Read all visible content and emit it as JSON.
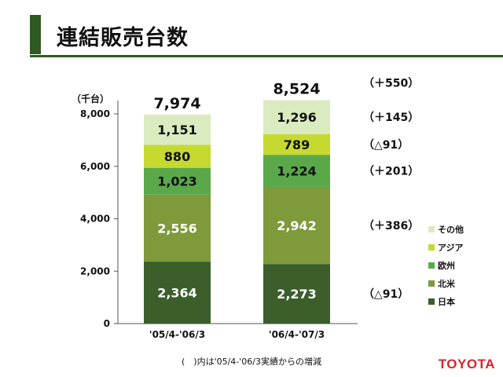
{
  "title": "連結販売台数",
  "footnote": "(　)内は'05/4-'06/3実績からの増減",
  "logo_text": "TOYOTA",
  "chart_data": {
    "type": "bar",
    "stacked": true,
    "unit_label": "（千台）",
    "categories": [
      "'05/4-'06/3",
      "'06/4-'07/3"
    ],
    "totals": [
      "7,974",
      "8,524"
    ],
    "ylim": [
      0,
      8000
    ],
    "yticks": [
      0,
      2000,
      4000,
      6000,
      8000
    ],
    "ytick_labels": [
      "0",
      "2,000",
      "4,000",
      "6,000",
      "8,000"
    ],
    "series": [
      {
        "name": "日本",
        "values": [
          2364,
          2273
        ],
        "labels": [
          "2,364",
          "2,273"
        ],
        "color": "#3b5e2b",
        "text_color": "#ffffff"
      },
      {
        "name": "北米",
        "values": [
          2556,
          2942
        ],
        "labels": [
          "2,556",
          "2,942"
        ],
        "color": "#7f9a3a",
        "text_color": "#ffffff"
      },
      {
        "name": "欧州",
        "values": [
          1023,
          1224
        ],
        "labels": [
          "1,023",
          "1,224"
        ],
        "color": "#5aa84a",
        "text_color": "#111111"
      },
      {
        "name": "アジア",
        "values": [
          880,
          789
        ],
        "labels": [
          "880",
          "789"
        ],
        "color": "#c6d930",
        "text_color": "#111111"
      },
      {
        "name": "その他",
        "values": [
          1151,
          1296
        ],
        "labels": [
          "1,151",
          "1,296"
        ],
        "color": "#d9ebbf",
        "text_color": "#111111"
      }
    ],
    "changes": [
      {
        "label": "（△91）",
        "series": "日本"
      },
      {
        "label": "（＋386）",
        "series": "北米"
      },
      {
        "label": "（＋201）",
        "series": "欧州"
      },
      {
        "label": "（△91）",
        "series": "アジア"
      },
      {
        "label": "（＋145）",
        "series": "その他"
      },
      {
        "label": "（＋550）",
        "series": "total"
      }
    ],
    "legend_order": [
      "その他",
      "アジア",
      "欧州",
      "北米",
      "日本"
    ],
    "legend_position": "right",
    "grid": false
  }
}
